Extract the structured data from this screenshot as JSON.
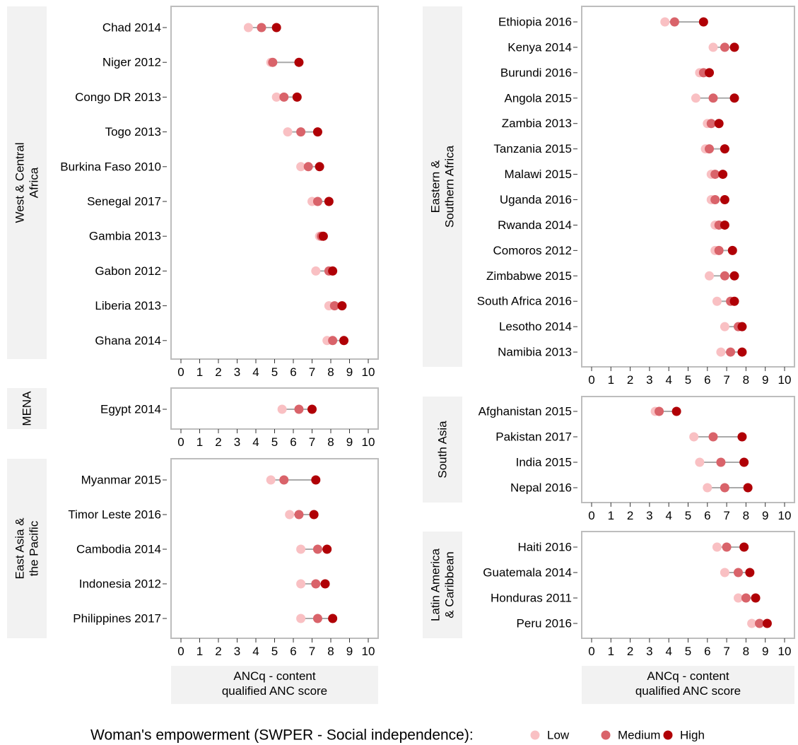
{
  "legend": {
    "title": "Woman's empowerment (SWPER - Social independence):",
    "items": [
      {
        "label": "Low",
        "color": "#f9c0c3"
      },
      {
        "label": "Medium",
        "color": "#d9636a"
      },
      {
        "label": "High",
        "color": "#b00006"
      }
    ]
  },
  "axis": {
    "ticks": [
      "0",
      "1",
      "2",
      "3",
      "4",
      "5",
      "6",
      "7",
      "8",
      "9",
      "10"
    ],
    "xlabel_line1": "ANCq - content",
    "xlabel_line2": "qualified ANC score"
  },
  "chart_data": {
    "type": "dot",
    "xlim": [
      0,
      10
    ],
    "x_label": "ANCq - content qualified ANC score",
    "series_names": [
      "Low",
      "Medium",
      "High"
    ],
    "legend_placement": "bottom",
    "panels": [
      {
        "region": [
          "West & Central",
          "Africa"
        ],
        "column": "left",
        "rows": [
          {
            "country": "Chad 2014",
            "low": 3.6,
            "medium": 4.3,
            "high": 5.1
          },
          {
            "country": "Niger 2012",
            "low": 4.8,
            "medium": 4.9,
            "high": 6.3
          },
          {
            "country": "Congo DR 2013",
            "low": 5.1,
            "medium": 5.5,
            "high": 6.2
          },
          {
            "country": "Togo 2013",
            "low": 5.7,
            "medium": 6.4,
            "high": 7.3
          },
          {
            "country": "Burkina Faso 2010",
            "low": 6.4,
            "medium": 6.8,
            "high": 7.4
          },
          {
            "country": "Senegal 2017",
            "low": 7.0,
            "medium": 7.3,
            "high": 7.9
          },
          {
            "country": "Gambia 2013",
            "low": 7.4,
            "medium": 7.5,
            "high": 7.6
          },
          {
            "country": "Gabon 2012",
            "low": 7.2,
            "medium": 7.9,
            "high": 8.1
          },
          {
            "country": "Liberia 2013",
            "low": 7.9,
            "medium": 8.2,
            "high": 8.6
          },
          {
            "country": "Ghana 2014",
            "low": 7.8,
            "medium": 8.1,
            "high": 8.7
          }
        ]
      },
      {
        "region": [
          "MENA"
        ],
        "column": "left",
        "rows": [
          {
            "country": "Egypt 2014",
            "low": 5.4,
            "medium": 6.3,
            "high": 7.0
          }
        ]
      },
      {
        "region": [
          "East Asia &",
          "the Pacific"
        ],
        "column": "left",
        "rows": [
          {
            "country": "Myanmar 2015",
            "low": 4.8,
            "medium": 5.5,
            "high": 7.2
          },
          {
            "country": "Timor Leste 2016",
            "low": 5.8,
            "medium": 6.3,
            "high": 7.1
          },
          {
            "country": "Cambodia 2014",
            "low": 6.4,
            "medium": 7.3,
            "high": 7.8
          },
          {
            "country": "Indonesia 2012",
            "low": 6.4,
            "medium": 7.2,
            "high": 7.7
          },
          {
            "country": "Philippines 2017",
            "low": 6.4,
            "medium": 7.3,
            "high": 8.1
          }
        ]
      },
      {
        "region": [
          "Eastern &",
          "Southern Africa"
        ],
        "column": "right",
        "rows": [
          {
            "country": "Ethiopia 2016",
            "low": 3.8,
            "medium": 4.3,
            "high": 5.8
          },
          {
            "country": "Kenya 2014",
            "low": 6.3,
            "medium": 6.9,
            "high": 7.4
          },
          {
            "country": "Burundi 2016",
            "low": 5.6,
            "medium": 5.8,
            "high": 6.1
          },
          {
            "country": "Angola 2015",
            "low": 5.4,
            "medium": 6.3,
            "high": 7.4
          },
          {
            "country": "Zambia 2013",
            "low": 6.0,
            "medium": 6.2,
            "high": 6.6
          },
          {
            "country": "Tanzania 2015",
            "low": 5.9,
            "medium": 6.1,
            "high": 6.9
          },
          {
            "country": "Malawi 2015",
            "low": 6.2,
            "medium": 6.4,
            "high": 6.8
          },
          {
            "country": "Uganda 2016",
            "low": 6.2,
            "medium": 6.4,
            "high": 6.9
          },
          {
            "country": "Rwanda 2014",
            "low": 6.4,
            "medium": 6.6,
            "high": 6.9
          },
          {
            "country": "Comoros 2012",
            "low": 6.4,
            "medium": 6.6,
            "high": 7.3
          },
          {
            "country": "Zimbabwe 2015",
            "low": 6.1,
            "medium": 6.9,
            "high": 7.4
          },
          {
            "country": "South Africa 2016",
            "low": 6.5,
            "medium": 7.2,
            "high": 7.4
          },
          {
            "country": "Lesotho 2014",
            "low": 6.9,
            "medium": 7.6,
            "high": 7.8
          },
          {
            "country": "Namibia 2013",
            "low": 6.7,
            "medium": 7.2,
            "high": 7.8
          }
        ]
      },
      {
        "region": [
          "South Asia"
        ],
        "column": "right",
        "rows": [
          {
            "country": "Afghanistan 2015",
            "low": 3.3,
            "medium": 3.5,
            "high": 4.4
          },
          {
            "country": "Pakistan 2017",
            "low": 5.3,
            "medium": 6.3,
            "high": 7.8
          },
          {
            "country": "India 2015",
            "low": 5.6,
            "medium": 6.7,
            "high": 7.9
          },
          {
            "country": "Nepal 2016",
            "low": 6.0,
            "medium": 6.9,
            "high": 8.1
          }
        ]
      },
      {
        "region": [
          "Latin America",
          "& Caribbean"
        ],
        "column": "right",
        "rows": [
          {
            "country": "Haiti 2016",
            "low": 6.5,
            "medium": 7.0,
            "high": 7.9
          },
          {
            "country": "Guatemala 2014",
            "low": 6.9,
            "medium": 7.6,
            "high": 8.2
          },
          {
            "country": "Honduras 2011",
            "low": 7.6,
            "medium": 8.0,
            "high": 8.5
          },
          {
            "country": "Peru 2016",
            "low": 8.3,
            "medium": 8.7,
            "high": 9.1
          }
        ]
      }
    ]
  }
}
